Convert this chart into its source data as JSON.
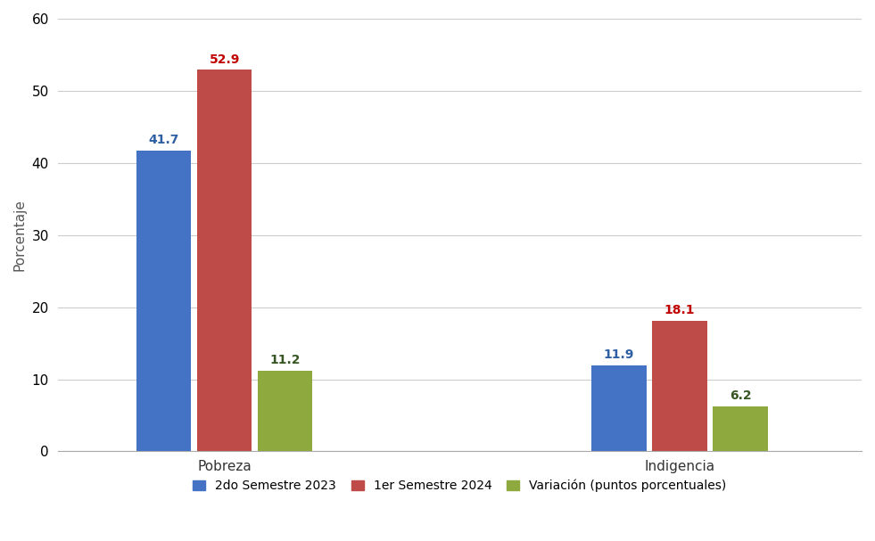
{
  "categories": [
    "Pobreza",
    "Indigencia"
  ],
  "series": {
    "2do Semestre 2023": [
      41.7,
      11.9
    ],
    "1er Semestre 2024": [
      52.9,
      18.1
    ],
    "Variación (puntos porcentuales)": [
      11.2,
      6.2
    ]
  },
  "colors": {
    "2do Semestre 2023": "#4472C4",
    "1er Semestre 2024": "#BE4B48",
    "Variación (puntos porcentuales)": "#8EAA3E"
  },
  "label_colors": {
    "2do Semestre 2023": "#2E5FA3",
    "1er Semestre 2024": "#C00000",
    "Variación (puntos porcentuales)": "#375623"
  },
  "ylabel": "Porcentaje",
  "ylim": [
    0,
    60
  ],
  "yticks": [
    0,
    10,
    20,
    30,
    40,
    50,
    60
  ],
  "background_color": "#FFFFFF",
  "grid_color": "#CCCCCC",
  "bar_width": 0.18,
  "label_fontsize": 10,
  "axis_fontsize": 11,
  "legend_fontsize": 10,
  "group_centers": [
    1.0,
    2.5
  ],
  "xlim": [
    0.45,
    3.1
  ]
}
